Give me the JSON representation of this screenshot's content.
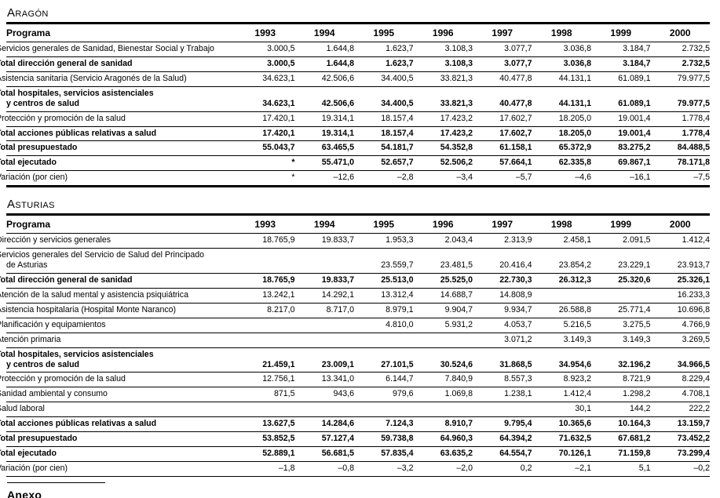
{
  "document": {
    "sections": [
      {
        "title": "Aragón",
        "columns": [
          "Programa",
          "1993",
          "1994",
          "1995",
          "1996",
          "1997",
          "1998",
          "1999",
          "2000"
        ],
        "rows": [
          {
            "label": "Servicios generales de Sanidad, Bienestar Social y Trabajo",
            "bold": false,
            "values": [
              "3.000,5",
              "1.644,8",
              "1.623,7",
              "3.108,3",
              "3.077,7",
              "3.036,8",
              "3.184,7",
              "2.732,5"
            ]
          },
          {
            "label": "Total dirección general de sanidad",
            "bold": true,
            "values": [
              "3.000,5",
              "1.644,8",
              "1.623,7",
              "3.108,3",
              "3.077,7",
              "3.036,8",
              "3.184,7",
              "2.732,5"
            ]
          },
          {
            "label": "Asistencia sanitaria (Servicio Aragonés de la Salud)",
            "bold": false,
            "values": [
              "34.623,1",
              "42.506,6",
              "34.400,5",
              "33.821,3",
              "40.477,8",
              "44.131,1",
              "61.089,1",
              "79.977,5"
            ]
          },
          {
            "label": "Total hospitales, servicios asistenciales\ny centros de salud",
            "bold": true,
            "values": [
              "34.623,1",
              "42.506,6",
              "34.400,5",
              "33.821,3",
              "40.477,8",
              "44.131,1",
              "61.089,1",
              "79.977,5"
            ]
          },
          {
            "label": "Protección y promoción de la salud",
            "bold": false,
            "values": [
              "17.420,1",
              "19.314,1",
              "18.157,4",
              "17.423,2",
              "17.602,7",
              "18.205,0",
              "19.001,4",
              "1.778,4"
            ]
          },
          {
            "label": "Total acciones públicas relativas a salud",
            "bold": true,
            "values": [
              "17.420,1",
              "19.314,1",
              "18.157,4",
              "17.423,2",
              "17.602,7",
              "18.205,0",
              "19.001,4",
              "1.778,4"
            ]
          },
          {
            "label": "Total presupuestado",
            "bold": true,
            "values": [
              "55.043,7",
              "63.465,5",
              "54.181,7",
              "54.352,8",
              "61.158,1",
              "65.372,9",
              "83.275,2",
              "84.488,5"
            ]
          },
          {
            "label": "Total ejecutado",
            "bold": true,
            "values": [
              "*",
              "55.471,0",
              "52.657,7",
              "52.506,2",
              "57.664,1",
              "62.335,8",
              "69.867,1",
              "78.171,8"
            ]
          },
          {
            "label": "Variación (por cien)",
            "bold": false,
            "values": [
              "*",
              "–12,6",
              "–2,8",
              "–3,4",
              "–5,7",
              "–4,6",
              "–16,1",
              "–7,5"
            ]
          }
        ]
      },
      {
        "title": "Asturias",
        "columns": [
          "Programa",
          "1993",
          "1994",
          "1995",
          "1996",
          "1997",
          "1998",
          "1999",
          "2000"
        ],
        "rows": [
          {
            "label": "Dirección y servicios generales",
            "bold": false,
            "values": [
              "18.765,9",
              "19.833,7",
              "1.953,3",
              "2.043,4",
              "2.313,9",
              "2.458,1",
              "2.091,5",
              "1.412,4"
            ]
          },
          {
            "label": "Servicios generales del Servicio de Salud del Principado\nde Asturias",
            "bold": false,
            "values": [
              "",
              "",
              "23.559,7",
              "23.481,5",
              "20.416,4",
              "23.854,2",
              "23.229,1",
              "23.913,7"
            ]
          },
          {
            "label": "Total dirección general de sanidad",
            "bold": true,
            "values": [
              "18.765,9",
              "19.833,7",
              "25.513,0",
              "25.525,0",
              "22.730,3",
              "26.312,3",
              "25.320,6",
              "25.326,1"
            ]
          },
          {
            "label": "Atención de la salud mental y asistencia psiquiátrica",
            "bold": false,
            "values": [
              "13.242,1",
              "14.292,1",
              "13.312,4",
              "14.688,7",
              "14.808,9",
              "",
              "",
              "16.233,3"
            ]
          },
          {
            "label": "Asistencia hospitalaria (Hospital Monte Naranco)",
            "bold": false,
            "values": [
              "8.217,0",
              "8.717,0",
              "8.979,1",
              "9.904,7",
              "9.934,7",
              "26.588,8",
              "25.771,4",
              "10.696,8"
            ]
          },
          {
            "label": "Planificación y equipamientos",
            "bold": false,
            "values": [
              "",
              "",
              "4.810,0",
              "5.931,2",
              "4.053,7",
              "5.216,5",
              "3.275,5",
              "4.766,9"
            ]
          },
          {
            "label": "Atención primaria",
            "bold": false,
            "values": [
              "",
              "",
              "",
              "",
              "3.071,2",
              "3.149,3",
              "3.149,3",
              "3.269,5"
            ]
          },
          {
            "label": "Total hospitales, servicios asistenciales\ny centros de salud",
            "bold": true,
            "values": [
              "21.459,1",
              "23.009,1",
              "27.101,5",
              "30.524,6",
              "31.868,5",
              "34.954,6",
              "32.196,2",
              "34.966,5"
            ]
          },
          {
            "label": "Protección y promoción de la salud",
            "bold": false,
            "values": [
              "12.756,1",
              "13.341,0",
              "6.144,7",
              "7.840,9",
              "8.557,3",
              "8.923,2",
              "8.721,9",
              "8.229,4"
            ]
          },
          {
            "label": "Sanidad ambiental y consumo",
            "bold": false,
            "values": [
              "871,5",
              "943,6",
              "979,6",
              "1.069,8",
              "1.238,1",
              "1.412,4",
              "1.298,2",
              "4.708,1"
            ]
          },
          {
            "label": "Salud laboral",
            "bold": false,
            "values": [
              "",
              "",
              "",
              "",
              "",
              "30,1",
              "144,2",
              "222,2"
            ]
          },
          {
            "label": "Total acciones públicas relativas a salud",
            "bold": true,
            "values": [
              "13.627,5",
              "14.284,6",
              "7.124,3",
              "8.910,7",
              "9.795,4",
              "10.365,6",
              "10.164,3",
              "13.159,7"
            ]
          },
          {
            "label": "Total presupuestado",
            "bold": true,
            "values": [
              "53.852,5",
              "57.127,4",
              "59.738,8",
              "64.960,3",
              "64.394,2",
              "71.632,5",
              "67.681,2",
              "73.452,2"
            ]
          },
          {
            "label": "Total ejecutado",
            "bold": true,
            "values": [
              "52.889,1",
              "56.681,5",
              "57.835,4",
              "63.635,2",
              "64.554,7",
              "70.126,1",
              "71.159,8",
              "73.299,4"
            ]
          },
          {
            "label": "Variación (por cien)",
            "bold": false,
            "values": [
              "–1,8",
              "–0,8",
              "–3,2",
              "–2,0",
              "0,2",
              "–2,1",
              "5,1",
              "–0,2"
            ]
          }
        ]
      }
    ],
    "annex": {
      "title": "Anexo"
    }
  }
}
